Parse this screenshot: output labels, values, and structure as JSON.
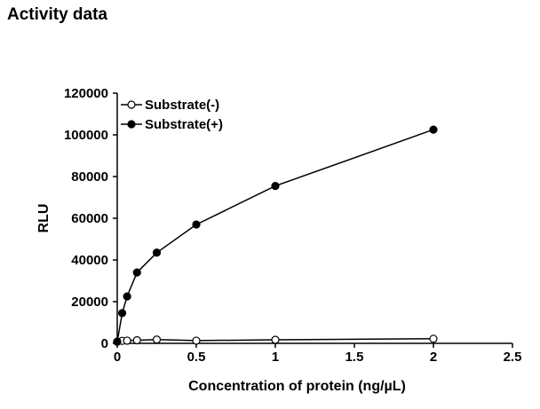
{
  "page": {
    "title": "Activity data"
  },
  "chart_data": {
    "type": "scatter",
    "title": "",
    "xlabel": "Concentration of protein (ng/µL)",
    "ylabel": "RLU",
    "xlim": [
      0,
      2.5
    ],
    "ylim": [
      0,
      120000
    ],
    "xticks": [
      0,
      0.5,
      1,
      1.5,
      2,
      2.5
    ],
    "xtick_labels": [
      "0",
      "0.5",
      "1",
      "1.5",
      "2",
      "2.5"
    ],
    "yticks": [
      0,
      20000,
      40000,
      60000,
      80000,
      100000,
      120000
    ],
    "ytick_labels": [
      "0",
      "20000",
      "40000",
      "60000",
      "80000",
      "100000",
      "120000"
    ],
    "grid": false,
    "legend_position": "top-left",
    "series": [
      {
        "name": "Substrate(-)",
        "marker": "open-circle",
        "color": "#000000",
        "x": [
          0,
          0.03125,
          0.0625,
          0.125,
          0.25,
          0.5,
          1,
          2
        ],
        "y": [
          800,
          1200,
          1300,
          1500,
          1800,
          1300,
          1700,
          2200
        ]
      },
      {
        "name": "Substrate(+)",
        "marker": "filled-circle",
        "color": "#000000",
        "x": [
          0,
          0.03125,
          0.0625,
          0.125,
          0.25,
          0.5,
          1,
          2
        ],
        "y": [
          800,
          14500,
          22500,
          34000,
          43500,
          57000,
          75500,
          102500
        ]
      }
    ]
  }
}
